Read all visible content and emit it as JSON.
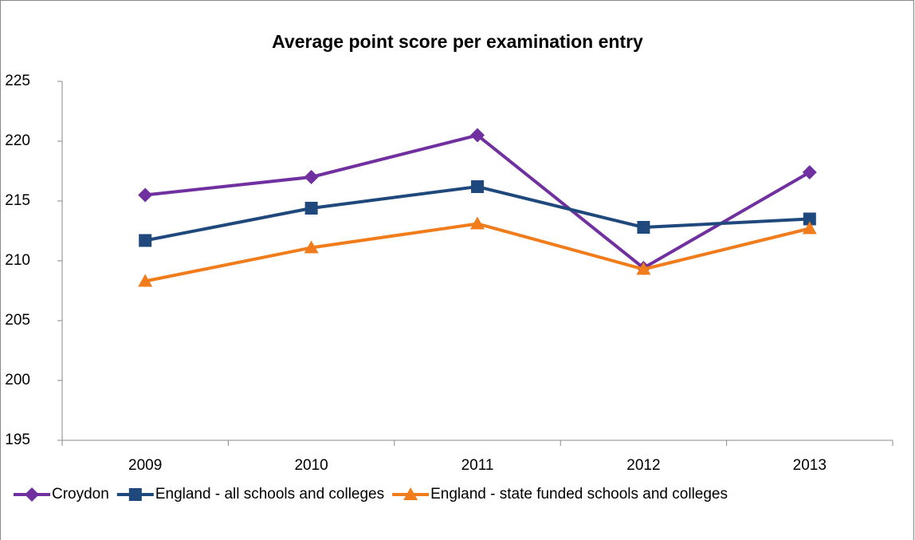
{
  "chart_data": {
    "type": "line",
    "title": "Average point score per examination entry",
    "categories": [
      "2009",
      "2010",
      "2011",
      "2012",
      "2013"
    ],
    "series": [
      {
        "name": "Croydon",
        "color": "#7030a0",
        "marker": "diamond",
        "values": [
          215.5,
          217.0,
          220.5,
          209.4,
          217.4
        ]
      },
      {
        "name": "England - all schools and colleges",
        "color": "#1f497d",
        "marker": "square",
        "values": [
          211.7,
          214.4,
          216.2,
          212.8,
          213.5
        ]
      },
      {
        "name": "England - state funded schools and colleges",
        "color": "#f07c1b",
        "marker": "triangle",
        "values": [
          208.3,
          211.1,
          213.1,
          209.3,
          212.7
        ]
      }
    ],
    "ylim": [
      195,
      225
    ],
    "yticks": [
      195,
      200,
      205,
      210,
      215,
      220,
      225
    ],
    "grid": false,
    "legend": "bottom"
  }
}
